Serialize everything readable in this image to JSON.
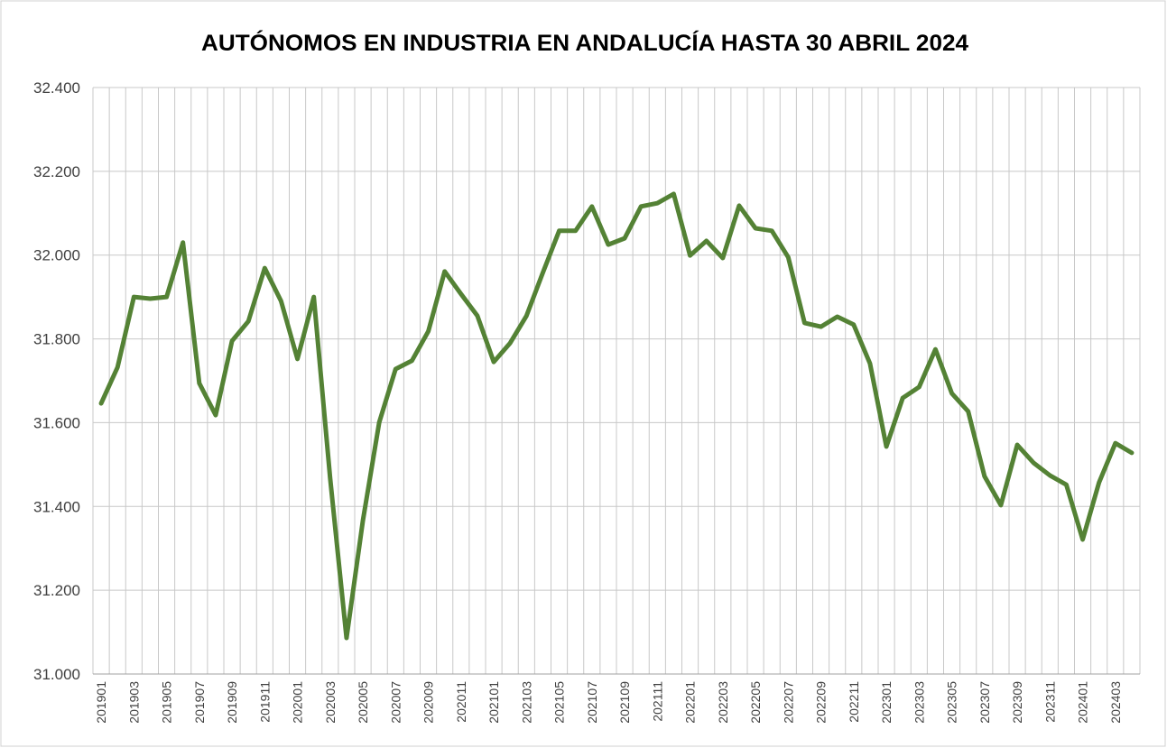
{
  "chart_data": {
    "type": "line",
    "title": "AUTÓNOMOS EN INDUSTRIA EN ANDALUCÍA HASTA 30 ABRIL 2024",
    "categories": [
      "201901",
      null,
      "201903",
      null,
      "201905",
      null,
      "201907",
      null,
      "201909",
      null,
      "201911",
      null,
      "202001",
      null,
      "202003",
      null,
      "202005",
      null,
      "202007",
      null,
      "202009",
      null,
      "202011",
      null,
      "202101",
      null,
      "202103",
      null,
      "202105",
      null,
      "202107",
      null,
      "202109",
      null,
      "202111",
      null,
      "202201",
      null,
      "202203",
      null,
      "202205",
      null,
      "202207",
      null,
      "202209",
      null,
      "202211",
      null,
      "202301",
      null,
      "202303",
      null,
      "202305",
      null,
      "202307",
      null,
      "202309",
      null,
      "202311",
      null,
      "202401",
      null,
      "202403",
      null
    ],
    "values": [
      31646,
      31732,
      31900,
      31896,
      31900,
      32030,
      31694,
      31618,
      31795,
      31842,
      31969,
      31890,
      31752,
      31900,
      31467,
      31086,
      31366,
      31601,
      31728,
      31748,
      31818,
      31961,
      31907,
      31855,
      31745,
      31790,
      31855,
      31958,
      32058,
      32058,
      32116,
      32025,
      32040,
      32116,
      32124,
      32146,
      31999,
      32034,
      31993,
      32118,
      32064,
      32058,
      31995,
      31838,
      31829,
      31853,
      31834,
      31741,
      31543,
      31659,
      31685,
      31775,
      31670,
      31627,
      31472,
      31403,
      31547,
      31504,
      31474,
      31452,
      31321,
      31457,
      31551,
      31528
    ],
    "color": "#548235",
    "ylim": [
      31000,
      32400
    ],
    "yticks": [
      {
        "value": 31000,
        "label": "31.000"
      },
      {
        "value": 31200,
        "label": "31.200"
      },
      {
        "value": 31400,
        "label": "31.400"
      },
      {
        "value": 31600,
        "label": "31.600"
      },
      {
        "value": 31800,
        "label": "31.800"
      },
      {
        "value": 32000,
        "label": "32.000"
      },
      {
        "value": 32200,
        "label": "32.200"
      },
      {
        "value": 32400,
        "label": "32.400"
      }
    ],
    "grid": true
  }
}
